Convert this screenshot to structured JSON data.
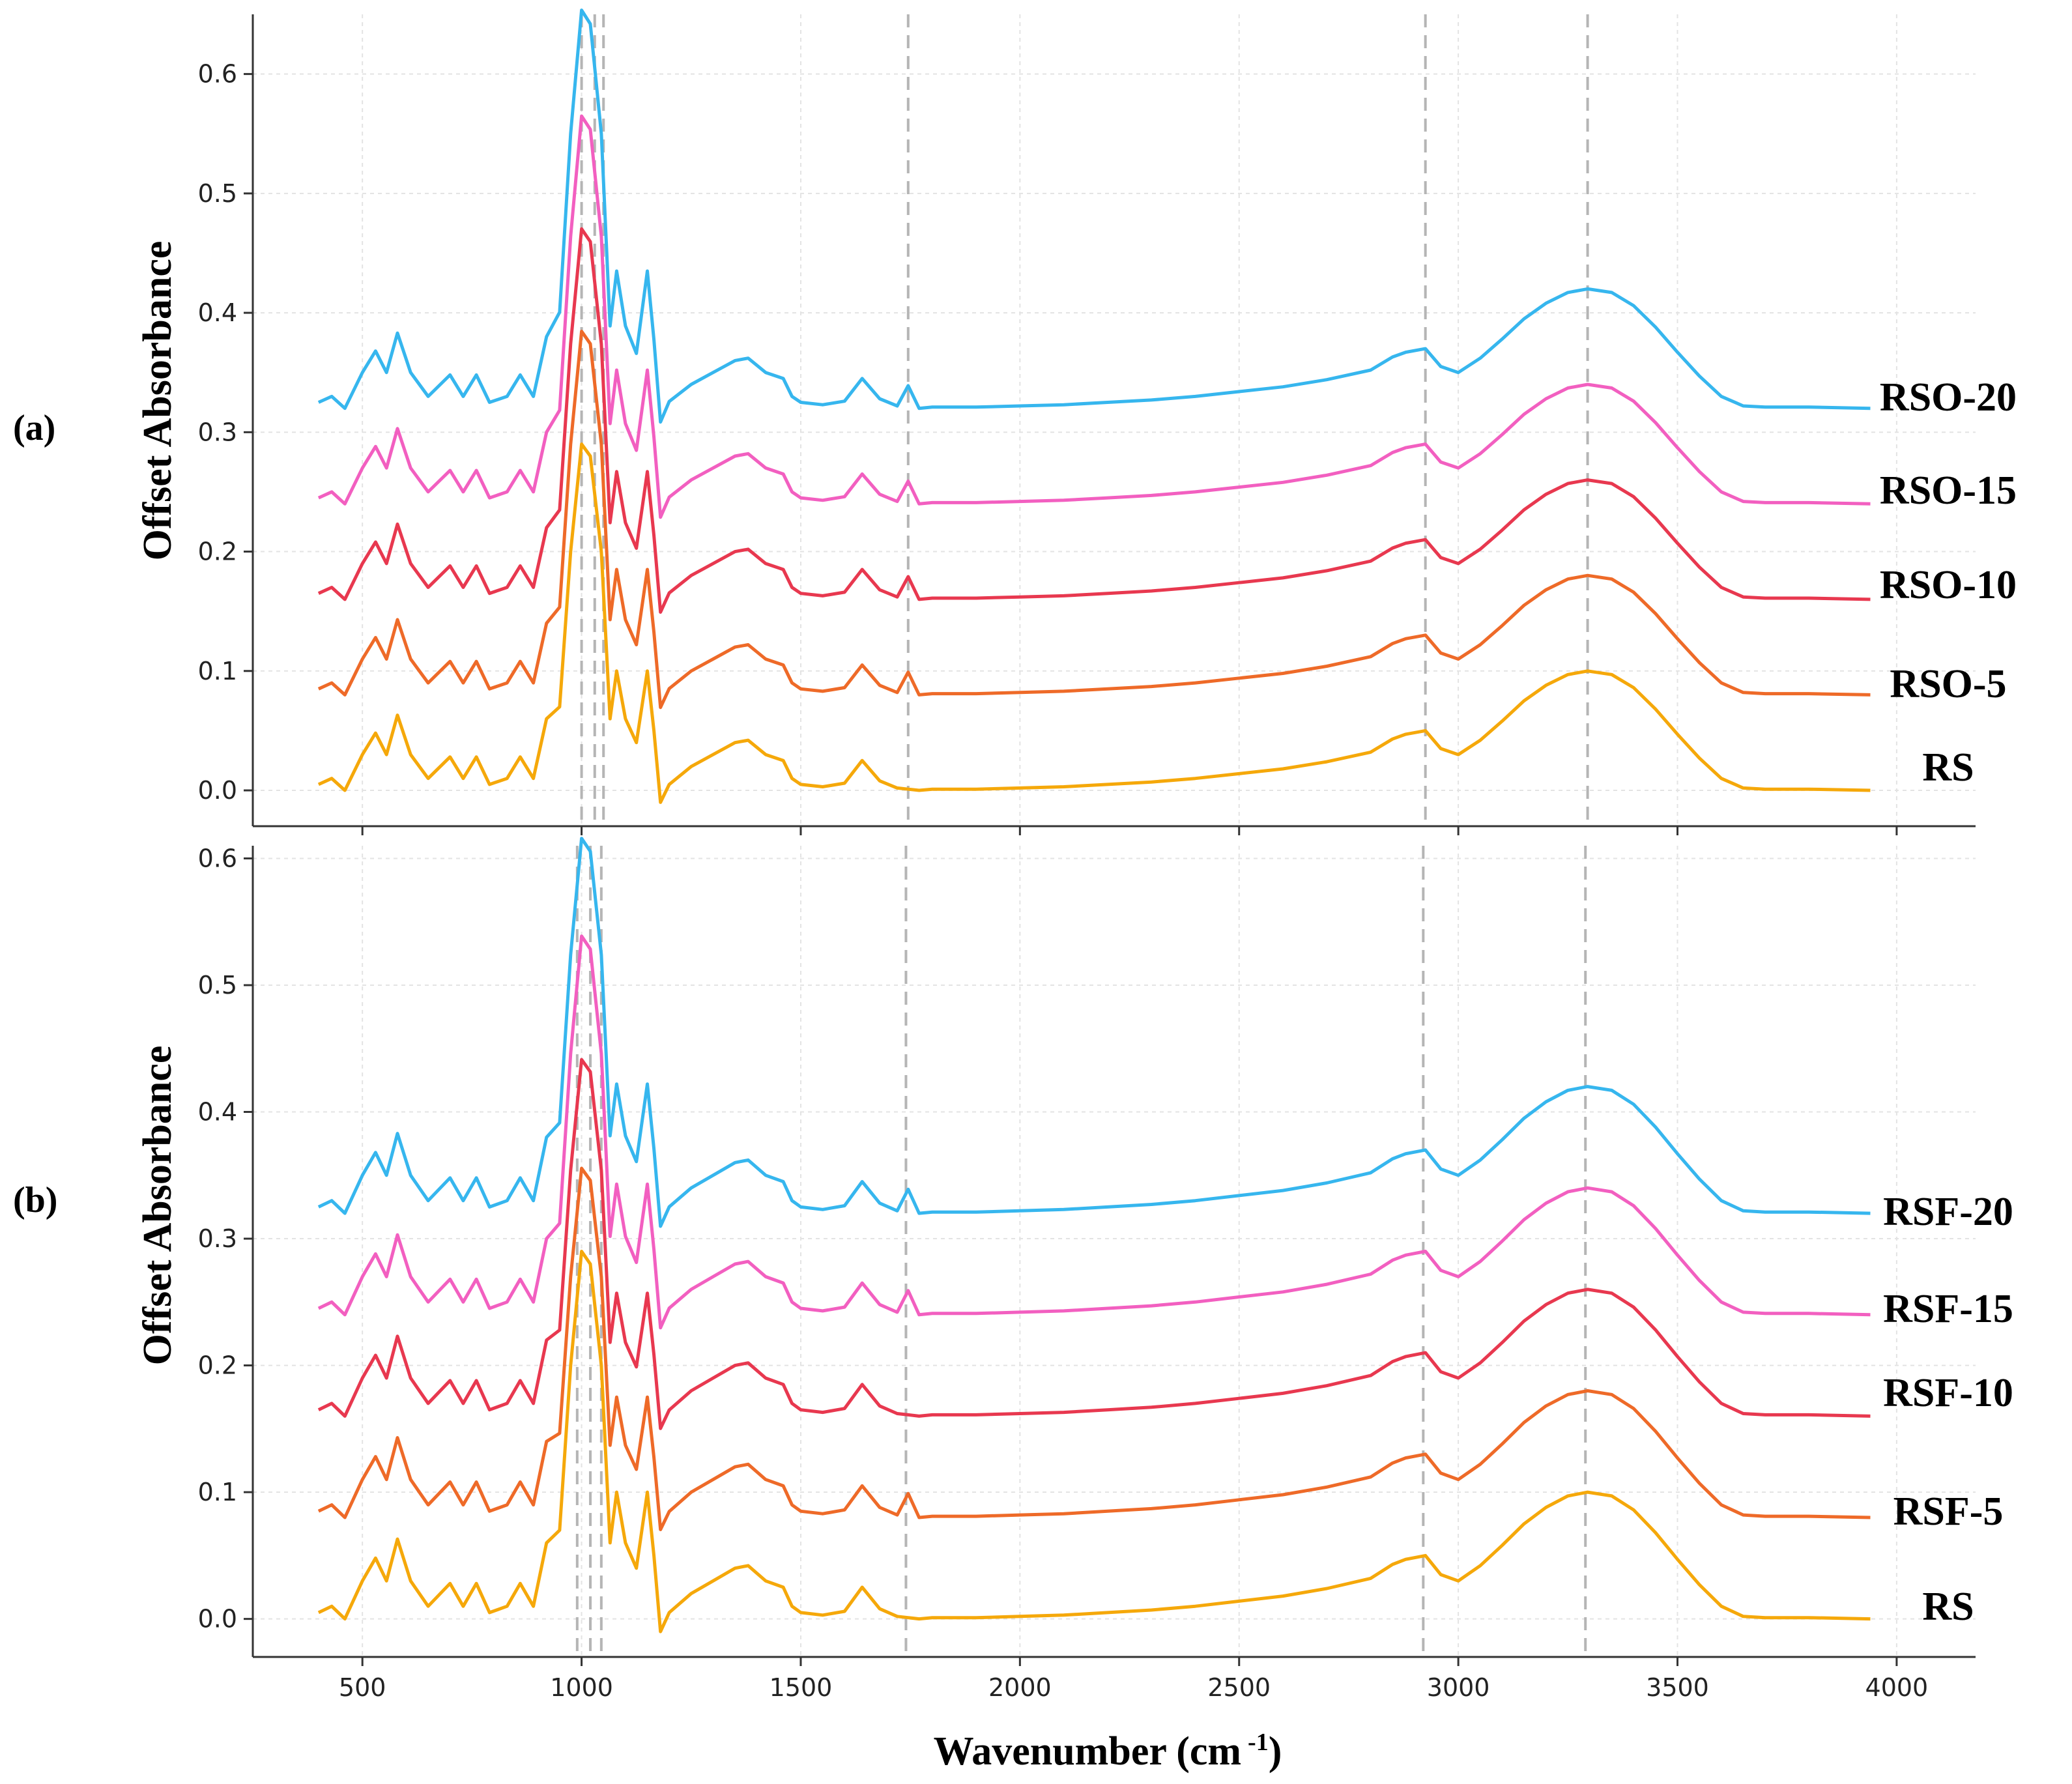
{
  "figure": {
    "xlabel_main": "Wavenumber (cm",
    "xlabel_sup": "-1",
    "xlabel_end": ")"
  },
  "colors": {
    "grid": "#e3e3e3",
    "ref_line": "#b5b5b5",
    "axis": "#333333",
    "series": [
      "#f5a80a",
      "#ee6a28",
      "#e8384f",
      "#f25fc0",
      "#36b6ee"
    ]
  },
  "chart_data": [
    {
      "type": "line",
      "panel_label": "(a)",
      "ylabel": "Offset Absorbance",
      "xlabel": "",
      "xlim": [
        250,
        4180
      ],
      "ylim": [
        -0.03,
        0.65
      ],
      "xticks": [
        500,
        1000,
        1500,
        2000,
        2500,
        3000,
        3500,
        4000
      ],
      "yticks": [
        0.0,
        0.1,
        0.2,
        0.3,
        0.4,
        0.5,
        0.6
      ],
      "ytick_labels": [
        "0.0",
        "0.1",
        "0.2",
        "0.3",
        "0.4",
        "0.5",
        "0.6"
      ],
      "xtick_labels": [
        "500",
        "1000",
        "1500",
        "2000",
        "2500",
        "3000",
        "3500",
        "4000"
      ],
      "reference_lines": [
        1000,
        1030,
        1050,
        1745,
        2925,
        3295
      ],
      "series": [
        {
          "name": "RS",
          "offset": 0.0,
          "peak_scale": 1.0,
          "has_1745": false
        },
        {
          "name": "RSO-5",
          "offset": 0.08,
          "peak_scale": 1.05,
          "has_1745": true
        },
        {
          "name": "RSO-10",
          "offset": 0.16,
          "peak_scale": 1.07,
          "has_1745": true
        },
        {
          "name": "RSO-15",
          "offset": 0.24,
          "peak_scale": 1.12,
          "has_1745": true
        },
        {
          "name": "RSO-20",
          "offset": 0.32,
          "peak_scale": 1.15,
          "has_1745": true
        }
      ],
      "x": [
        400,
        430,
        460,
        500,
        530,
        555,
        580,
        610,
        650,
        700,
        730,
        760,
        790,
        830,
        860,
        890,
        920,
        950,
        975,
        1000,
        1020,
        1045,
        1065,
        1080,
        1100,
        1125,
        1150,
        1165,
        1180,
        1200,
        1250,
        1300,
        1350,
        1380,
        1420,
        1460,
        1480,
        1500,
        1550,
        1600,
        1640,
        1680,
        1720,
        1745,
        1770,
        1800,
        1900,
        2000,
        2100,
        2200,
        2300,
        2400,
        2500,
        2600,
        2700,
        2800,
        2850,
        2880,
        2925,
        2960,
        3000,
        3050,
        3100,
        3150,
        3200,
        3250,
        3295,
        3350,
        3400,
        3450,
        3500,
        3550,
        3600,
        3650,
        3700,
        3800,
        3940
      ],
      "base_values": [
        0.005,
        0.01,
        0.0,
        0.03,
        0.048,
        0.03,
        0.063,
        0.03,
        0.01,
        0.028,
        0.01,
        0.028,
        0.005,
        0.01,
        0.028,
        0.01,
        0.06,
        0.07,
        0.2,
        0.29,
        0.28,
        0.2,
        0.06,
        0.1,
        0.06,
        0.04,
        0.1,
        0.05,
        -0.01,
        0.005,
        0.02,
        0.03,
        0.04,
        0.042,
        0.03,
        0.025,
        0.01,
        0.005,
        0.003,
        0.006,
        0.025,
        0.008,
        0.002,
        0.001,
        0.0,
        0.001,
        0.001,
        0.002,
        0.003,
        0.005,
        0.007,
        0.01,
        0.014,
        0.018,
        0.024,
        0.032,
        0.043,
        0.047,
        0.05,
        0.035,
        0.03,
        0.042,
        0.058,
        0.075,
        0.088,
        0.097,
        0.1,
        0.097,
        0.086,
        0.068,
        0.047,
        0.027,
        0.01,
        0.002,
        0.001,
        0.001,
        0.0
      ]
    },
    {
      "type": "line",
      "panel_label": "(b)",
      "ylabel": "Offset Absorbance",
      "xlabel": "Wavenumber (cm -1)",
      "xlim": [
        250,
        4180
      ],
      "ylim": [
        -0.03,
        0.61
      ],
      "xticks": [
        500,
        1000,
        1500,
        2000,
        2500,
        3000,
        3500,
        4000
      ],
      "yticks": [
        0.0,
        0.1,
        0.2,
        0.3,
        0.4,
        0.5,
        0.6
      ],
      "ytick_labels": [
        "0.0",
        "0.1",
        "0.2",
        "0.3",
        "0.4",
        "0.5",
        "0.6"
      ],
      "xtick_labels": [
        "500",
        "1000",
        "1500",
        "2000",
        "2500",
        "3000",
        "3500",
        "4000"
      ],
      "reference_lines": [
        990,
        1020,
        1045,
        1740,
        2920,
        3290
      ],
      "series": [
        {
          "name": "RS",
          "offset": 0.0,
          "peak_scale": 1.0,
          "has_1745": false
        },
        {
          "name": "RSF-5",
          "offset": 0.08,
          "peak_scale": 0.95,
          "has_1745": true
        },
        {
          "name": "RSF-10",
          "offset": 0.16,
          "peak_scale": 0.97,
          "has_1745": false
        },
        {
          "name": "RSF-15",
          "offset": 0.24,
          "peak_scale": 1.03,
          "has_1745": true
        },
        {
          "name": "RSF-20",
          "offset": 0.32,
          "peak_scale": 1.02,
          "has_1745": true
        }
      ],
      "x": [
        400,
        430,
        460,
        500,
        530,
        555,
        580,
        610,
        650,
        700,
        730,
        760,
        790,
        830,
        860,
        890,
        920,
        950,
        975,
        1000,
        1020,
        1045,
        1065,
        1080,
        1100,
        1125,
        1150,
        1165,
        1180,
        1200,
        1250,
        1300,
        1350,
        1380,
        1420,
        1460,
        1480,
        1500,
        1550,
        1600,
        1640,
        1680,
        1720,
        1745,
        1770,
        1800,
        1900,
        2000,
        2100,
        2200,
        2300,
        2400,
        2500,
        2600,
        2700,
        2800,
        2850,
        2880,
        2925,
        2960,
        3000,
        3050,
        3100,
        3150,
        3200,
        3250,
        3295,
        3350,
        3400,
        3450,
        3500,
        3550,
        3600,
        3650,
        3700,
        3800,
        3940
      ],
      "base_values": [
        0.005,
        0.01,
        0.0,
        0.03,
        0.048,
        0.03,
        0.063,
        0.03,
        0.01,
        0.028,
        0.01,
        0.028,
        0.005,
        0.01,
        0.028,
        0.01,
        0.06,
        0.07,
        0.2,
        0.29,
        0.28,
        0.2,
        0.06,
        0.1,
        0.06,
        0.04,
        0.1,
        0.05,
        -0.01,
        0.005,
        0.02,
        0.03,
        0.04,
        0.042,
        0.03,
        0.025,
        0.01,
        0.005,
        0.003,
        0.006,
        0.025,
        0.008,
        0.002,
        0.001,
        0.0,
        0.001,
        0.001,
        0.002,
        0.003,
        0.005,
        0.007,
        0.01,
        0.014,
        0.018,
        0.024,
        0.032,
        0.043,
        0.047,
        0.05,
        0.035,
        0.03,
        0.042,
        0.058,
        0.075,
        0.088,
        0.097,
        0.1,
        0.097,
        0.086,
        0.068,
        0.047,
        0.027,
        0.01,
        0.002,
        0.001,
        0.001,
        0.0
      ]
    }
  ]
}
